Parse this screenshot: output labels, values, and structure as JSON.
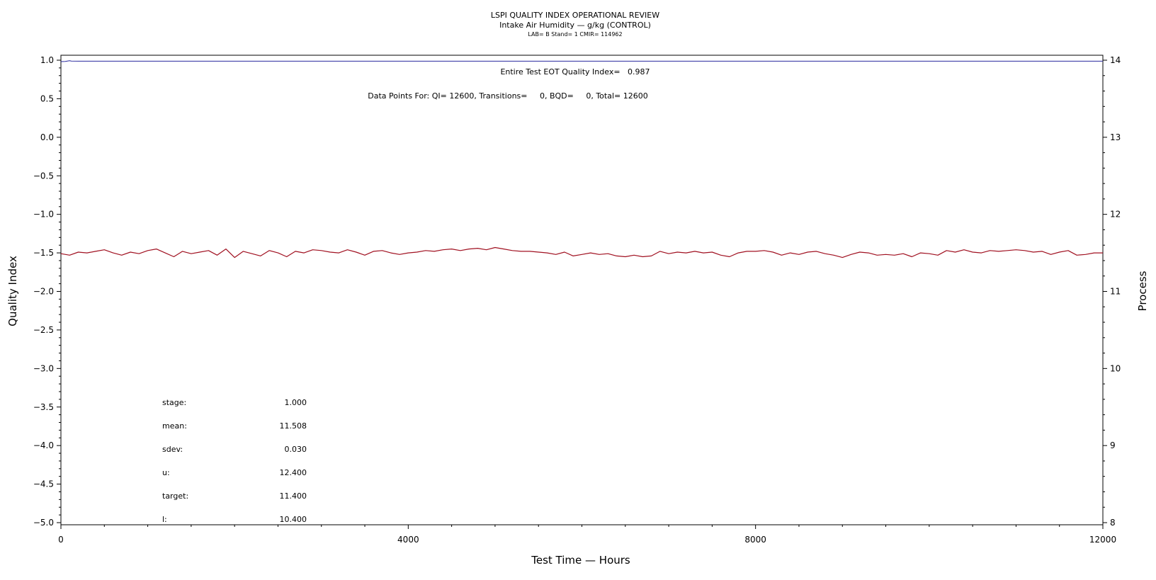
{
  "chart_data": {
    "type": "line",
    "title": "LSPI QUALITY INDEX OPERATIONAL REVIEW",
    "subtitle": "Intake Air Humidity — g/kg (CONTROL)",
    "subtitle2": "LAB= B Stand= 1 CMIR= 114962",
    "xlabel": "Test Time — Hours",
    "ylabel_left": "Quality Index",
    "ylabel_right": "Process",
    "xlim": [
      0,
      12000
    ],
    "ylim_left": [
      -5.0,
      1.0
    ],
    "ylim_right": [
      8,
      14
    ],
    "x_ticks": [
      "0",
      "4000",
      "8000",
      "12000"
    ],
    "y_left_ticks": [
      "1.0",
      "0.5",
      "0.0",
      "−0.5",
      "−1.0",
      "−1.5",
      "−2.0",
      "−2.5",
      "−3.0",
      "−3.5",
      "−4.0",
      "−4.5",
      "−5.0"
    ],
    "y_right_ticks": [
      "14",
      "13",
      "12",
      "11",
      "10",
      "9",
      "8"
    ],
    "annotation_qi": "Entire Test EOT Quality Index=   0.987",
    "annotation_points": "Data Points For: QI= 12600, Transitions=     0, BQD=     0, Total= 12600",
    "series": [
      {
        "axis": "left",
        "color": "#2a2a9e",
        "x": [
          0,
          50,
          80,
          100,
          120,
          200,
          12000
        ],
        "y": [
          0.982,
          0.984,
          0.99,
          0.993,
          0.988,
          0.987,
          0.987
        ]
      },
      {
        "axis": "right",
        "color": "#a01020",
        "x": [
          0,
          100,
          200,
          300,
          400,
          500,
          600,
          700,
          800,
          900,
          1000,
          1100,
          1200,
          1300,
          1400,
          1500,
          1600,
          1700,
          1800,
          1900,
          2000,
          2100,
          2200,
          2300,
          2400,
          2500,
          2600,
          2700,
          2800,
          2900,
          3000,
          3100,
          3200,
          3300,
          3400,
          3500,
          3600,
          3700,
          3800,
          3900,
          4000,
          4100,
          4200,
          4300,
          4400,
          4500,
          4600,
          4700,
          4800,
          4900,
          5000,
          5100,
          5200,
          5300,
          5400,
          5500,
          5600,
          5700,
          5800,
          5900,
          6000,
          6100,
          6200,
          6300,
          6400,
          6500,
          6600,
          6700,
          6800,
          6900,
          7000,
          7100,
          7200,
          7300,
          7400,
          7500,
          7600,
          7700,
          7800,
          7900,
          8000,
          8100,
          8200,
          8300,
          8400,
          8500,
          8600,
          8700,
          8800,
          8900,
          9000,
          9100,
          9200,
          9300,
          9400,
          9500,
          9600,
          9700,
          9800,
          9900,
          10000,
          10100,
          10200,
          10300,
          10400,
          10500,
          10600,
          10700,
          10800,
          10900,
          11000,
          11100,
          11200,
          11300,
          11400,
          11500,
          11600,
          11700,
          11800,
          11900,
          12000
        ],
        "y": [
          11.49,
          11.47,
          11.51,
          11.5,
          11.52,
          11.54,
          11.5,
          11.47,
          11.51,
          11.49,
          11.53,
          11.55,
          11.5,
          11.45,
          11.52,
          11.49,
          11.51,
          11.53,
          11.47,
          11.55,
          11.44,
          11.52,
          11.49,
          11.46,
          11.53,
          11.5,
          11.45,
          11.52,
          11.5,
          11.54,
          11.53,
          11.51,
          11.5,
          11.54,
          11.51,
          11.47,
          11.52,
          11.53,
          11.5,
          11.48,
          11.5,
          11.51,
          11.53,
          11.52,
          11.54,
          11.55,
          11.53,
          11.55,
          11.56,
          11.54,
          11.57,
          11.55,
          11.53,
          11.52,
          11.52,
          11.51,
          11.5,
          11.48,
          11.51,
          11.46,
          11.48,
          11.5,
          11.48,
          11.49,
          11.46,
          11.45,
          11.47,
          11.45,
          11.46,
          11.52,
          11.49,
          11.51,
          11.5,
          11.52,
          11.5,
          11.51,
          11.47,
          11.45,
          11.5,
          11.52,
          11.52,
          11.53,
          11.51,
          11.47,
          11.5,
          11.48,
          11.51,
          11.52,
          11.49,
          11.47,
          11.44,
          11.48,
          11.51,
          11.5,
          11.47,
          11.48,
          11.47,
          11.49,
          11.45,
          11.5,
          11.49,
          11.47,
          11.53,
          11.51,
          11.54,
          11.51,
          11.5,
          11.53,
          11.52,
          11.53,
          11.54,
          11.53,
          11.51,
          11.52,
          11.48,
          11.51,
          11.53,
          11.47,
          11.48,
          11.5,
          11.5
        ]
      }
    ],
    "stats": [
      {
        "label": "stage:",
        "value": "1.000"
      },
      {
        "label": "mean:",
        "value": "11.508"
      },
      {
        "label": "sdev:",
        "value": "0.030"
      },
      {
        "label": "u:",
        "value": "12.400"
      },
      {
        "label": "target:",
        "value": "11.400"
      },
      {
        "label": "l:",
        "value": "10.400"
      }
    ]
  }
}
